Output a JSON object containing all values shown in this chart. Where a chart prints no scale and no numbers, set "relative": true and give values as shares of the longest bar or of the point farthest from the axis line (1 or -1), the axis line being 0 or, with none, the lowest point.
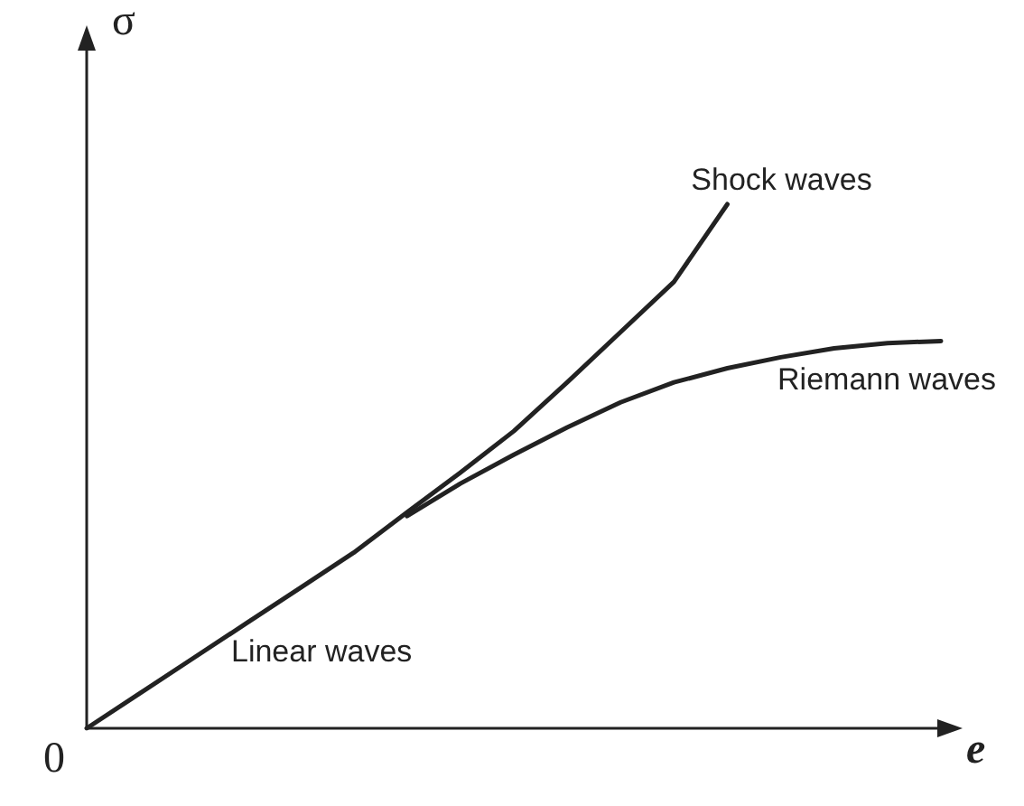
{
  "chart_data": {
    "type": "line",
    "relative": true,
    "xlabel": "e",
    "ylabel": "σ",
    "annotations": [
      "0",
      "Linear waves"
    ],
    "legend": false,
    "grid": false,
    "marker": "none",
    "line_style": "solid",
    "categories": [
      null,
      null,
      null,
      null,
      null,
      null,
      null,
      null,
      null,
      null,
      null,
      null,
      null,
      null,
      null,
      null,
      null
    ],
    "series": [
      {
        "name": "Shock waves",
        "color": "#222222",
        "values": [
          0,
          0.067,
          0.134,
          0.201,
          0.268,
          0.335,
          0.412,
          0.488,
          0.567,
          0.66,
          0.756,
          0.852,
          1.0,
          null,
          null,
          null,
          null
        ]
      },
      {
        "name": "Riemann waves",
        "color": "#222222",
        "values": [
          null,
          null,
          null,
          null,
          null,
          null,
          0.405,
          0.467,
          0.522,
          0.574,
          0.622,
          0.66,
          0.687,
          0.708,
          0.725,
          0.735,
          0.739
        ]
      }
    ]
  }
}
